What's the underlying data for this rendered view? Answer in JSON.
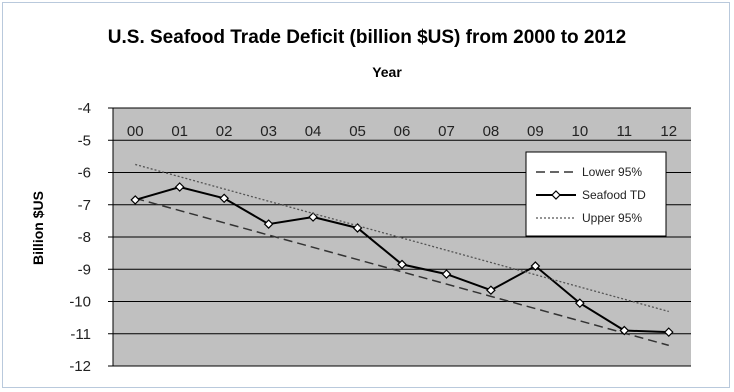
{
  "chart_data": {
    "type": "line",
    "title": "U.S. Seafood Trade Deficit (billion $US) from 2000 to 2012",
    "xlabel": "Year",
    "ylabel": "Billion $US",
    "categories": [
      "00",
      "01",
      "02",
      "03",
      "04",
      "05",
      "06",
      "07",
      "08",
      "09",
      "10",
      "11",
      "12"
    ],
    "ylim": [
      -12,
      -4
    ],
    "yticks": [
      -4,
      -5,
      -6,
      -7,
      -8,
      -9,
      -10,
      -11,
      -12
    ],
    "x_axis_position": "top",
    "grid": "horizontal",
    "legend_position": "right",
    "series": [
      {
        "name": "Lower 95%",
        "style": "dashed",
        "values": [
          -6.8,
          -7.18,
          -7.56,
          -7.94,
          -8.32,
          -8.7,
          -9.08,
          -9.46,
          -9.84,
          -10.22,
          -10.6,
          -10.98,
          -11.36
        ]
      },
      {
        "name": "Seafood TD",
        "style": "solid-diamond",
        "values": [
          -6.85,
          -6.45,
          -6.8,
          -7.6,
          -7.38,
          -7.72,
          -8.85,
          -9.15,
          -9.65,
          -8.9,
          -10.05,
          -10.9,
          -10.95
        ]
      },
      {
        "name": "Upper 95%",
        "style": "dotted",
        "values": [
          -5.75,
          -6.13,
          -6.51,
          -6.89,
          -7.27,
          -7.65,
          -8.03,
          -8.41,
          -8.79,
          -9.17,
          -9.55,
          -9.93,
          -10.31
        ]
      }
    ]
  },
  "colors": {
    "plot_background": "#c0c0c0",
    "frame_border": "#b9c9dc",
    "line": "#000000",
    "dashed_line": "#333333",
    "dotted_line": "#555555"
  }
}
